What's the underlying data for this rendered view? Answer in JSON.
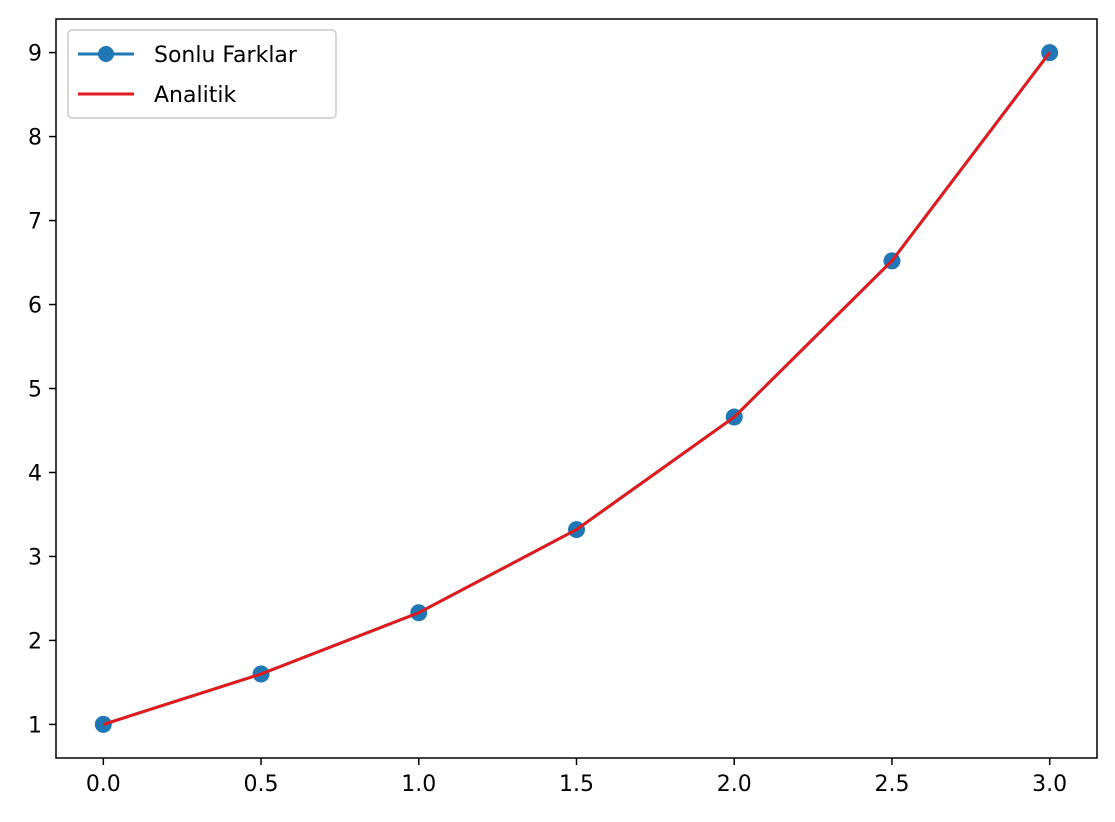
{
  "chart_data": {
    "type": "line",
    "title": "",
    "xlabel": "",
    "ylabel": "",
    "xlim": [
      -0.15,
      3.15
    ],
    "ylim": [
      0.6,
      9.4
    ],
    "xticks": [
      0.0,
      0.5,
      1.0,
      1.5,
      2.0,
      2.5,
      3.0
    ],
    "xtick_labels": [
      "0.0",
      "0.5",
      "1.0",
      "1.5",
      "2.0",
      "2.5",
      "3.0"
    ],
    "yticks": [
      1,
      2,
      3,
      4,
      5,
      6,
      7,
      8,
      9
    ],
    "ytick_labels": [
      "1",
      "2",
      "3",
      "4",
      "5",
      "6",
      "7",
      "8",
      "9"
    ],
    "grid": false,
    "legend_position": "top-left",
    "series": [
      {
        "name": "Sonlu Farklar",
        "color": "#1f77b4",
        "style": "line-with-circle-markers",
        "x": [
          0.0,
          0.5,
          1.0,
          1.5,
          2.0,
          2.5,
          3.0
        ],
        "y": [
          1.0,
          1.6,
          2.33,
          3.32,
          4.66,
          6.52,
          9.0
        ]
      },
      {
        "name": "Analitik",
        "color": "#e31a1c",
        "style": "line",
        "x": [
          0.0,
          0.5,
          1.0,
          1.5,
          2.0,
          2.5,
          3.0
        ],
        "y": [
          1.0,
          1.6,
          2.33,
          3.32,
          4.66,
          6.52,
          9.0
        ]
      }
    ]
  }
}
